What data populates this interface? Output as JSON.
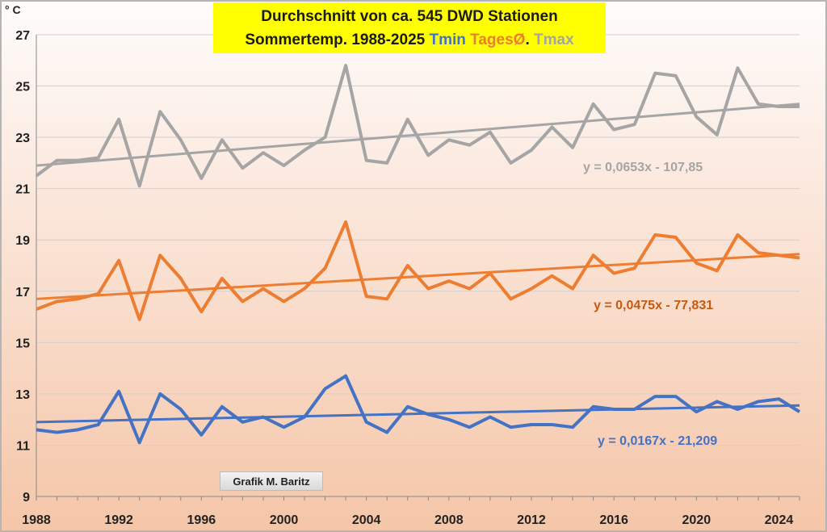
{
  "title": {
    "line1": "Durchschnitt von ca. 545 DWD Stationen",
    "line2_prefix": "Sommertemp. 1988-2025",
    "legend_tmin": "Tmin",
    "legend_tages": "TagesØ",
    "legend_sep": ".",
    "legend_tmax": "Tmax"
  },
  "unit_label": "° C",
  "credit": "Grafik M. Baritz",
  "colors": {
    "tmin": "#4472c4",
    "tages": "#ed7d31",
    "tmax": "#a5a5a5",
    "eq_tages": "#c55a11"
  },
  "chart_data": {
    "type": "line",
    "title": "Durchschnitt von ca. 545 DWD Stationen Sommertemp. 1988-2025",
    "xlim": [
      1988,
      2025
    ],
    "ylim": [
      9,
      27
    ],
    "x_ticks": [
      1988,
      1992,
      1996,
      2000,
      2004,
      2008,
      2012,
      2016,
      2020,
      2024
    ],
    "y_ticks": [
      9,
      11,
      13,
      15,
      17,
      19,
      21,
      23,
      25,
      27
    ],
    "x": [
      1988,
      1989,
      1990,
      1991,
      1992,
      1993,
      1994,
      1995,
      1996,
      1997,
      1998,
      1999,
      2000,
      2001,
      2002,
      2003,
      2004,
      2005,
      2006,
      2007,
      2008,
      2009,
      2010,
      2011,
      2012,
      2013,
      2014,
      2015,
      2016,
      2017,
      2018,
      2019,
      2020,
      2021,
      2022,
      2023,
      2024,
      2025
    ],
    "series": [
      {
        "name": "Tmax",
        "color": "#a5a5a5",
        "values": [
          21.5,
          22.1,
          22.1,
          22.2,
          23.7,
          21.1,
          24.0,
          22.9,
          21.4,
          22.9,
          21.8,
          22.4,
          21.9,
          22.5,
          23.0,
          25.8,
          22.1,
          22.0,
          23.7,
          22.3,
          22.9,
          22.7,
          23.2,
          22.0,
          22.5,
          23.4,
          22.6,
          24.3,
          23.3,
          23.5,
          25.5,
          25.4,
          23.8,
          23.1,
          25.7,
          24.3,
          24.2,
          24.2
        ],
        "trend": {
          "label": "y = 0,0653x - 107,85",
          "start": 21.9,
          "end": 24.3
        }
      },
      {
        "name": "TagesØ",
        "color": "#ed7d31",
        "values": [
          16.3,
          16.6,
          16.7,
          16.9,
          18.2,
          15.9,
          18.4,
          17.5,
          16.2,
          17.5,
          16.6,
          17.1,
          16.6,
          17.1,
          17.9,
          19.7,
          16.8,
          16.7,
          18.0,
          17.1,
          17.4,
          17.1,
          17.7,
          16.7,
          17.1,
          17.6,
          17.1,
          18.4,
          17.7,
          17.9,
          19.2,
          19.1,
          18.1,
          17.8,
          19.2,
          18.5,
          18.4,
          18.3
        ],
        "trend": {
          "label": "y = 0,0475x - 77,831",
          "start": 16.7,
          "end": 18.45
        }
      },
      {
        "name": "Tmin",
        "color": "#4472c4",
        "values": [
          11.6,
          11.5,
          11.6,
          11.8,
          13.1,
          11.1,
          13.0,
          12.4,
          11.4,
          12.5,
          11.9,
          12.1,
          11.7,
          12.1,
          13.2,
          13.7,
          11.9,
          11.5,
          12.5,
          12.2,
          12.0,
          11.7,
          12.1,
          11.7,
          11.8,
          11.8,
          11.7,
          12.5,
          12.4,
          12.4,
          12.9,
          12.9,
          12.3,
          12.7,
          12.4,
          12.7,
          12.8,
          12.3
        ],
        "trend": {
          "label": "y = 0,0167x - 21,209",
          "start": 11.9,
          "end": 12.55
        }
      }
    ]
  }
}
